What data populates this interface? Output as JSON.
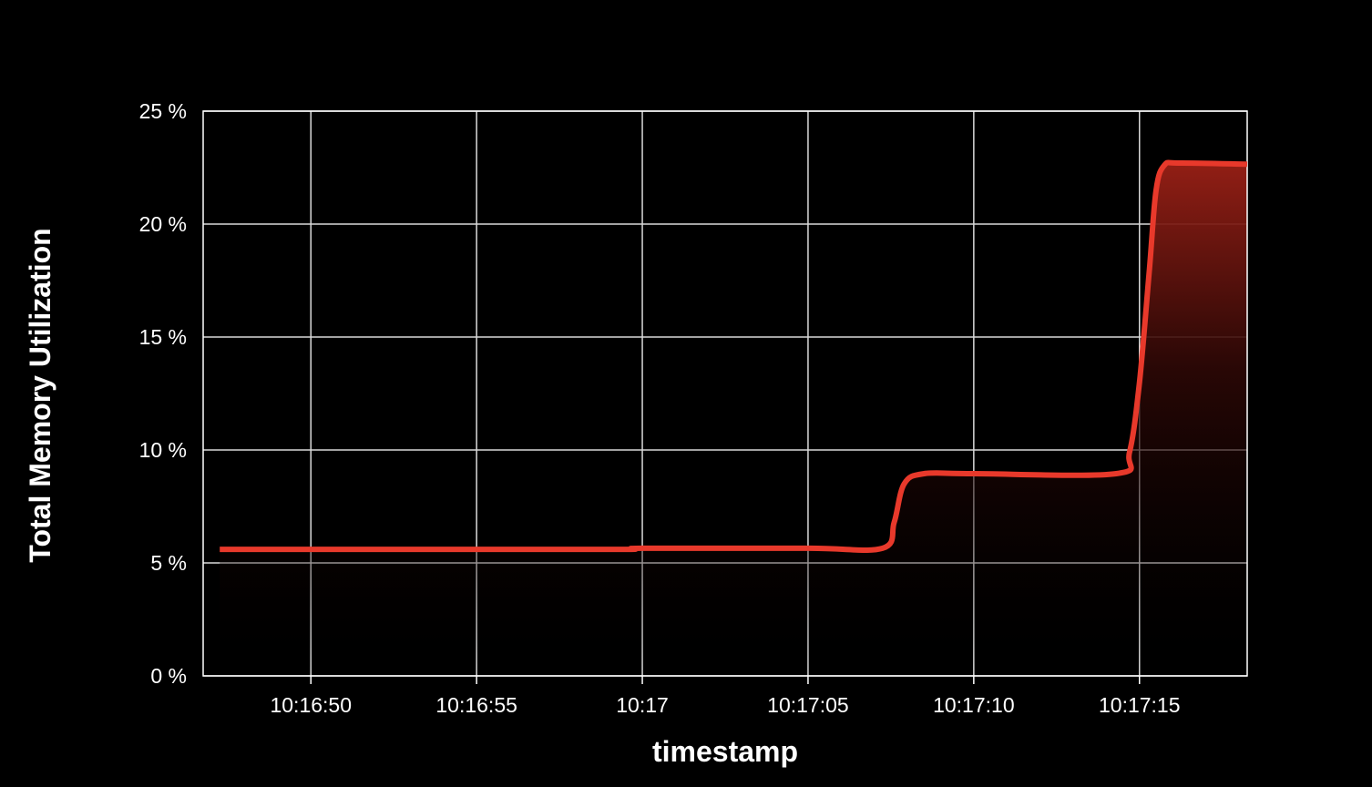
{
  "chart_data": {
    "type": "area",
    "title": "",
    "xlabel": "timestamp",
    "ylabel": "Total Memory Utilization",
    "x_ticks": [
      "10:16:50",
      "10:16:55",
      "10:17",
      "10:17:05",
      "10:17:10",
      "10:17:15"
    ],
    "y_ticks": [
      "0 %",
      "5 %",
      "10 %",
      "15 %",
      "20 %",
      "25 %"
    ],
    "ylim": [
      0,
      25
    ],
    "xlim": [
      "10:16:46.75",
      "10:17:18.25"
    ],
    "grid": true,
    "series": [
      {
        "color": "#e8392b",
        "x": [
          "10:16:47.25",
          "10:16:50",
          "10:16:55",
          "10:16:59.5",
          "10:17:00",
          "10:17:05",
          "10:17:07.25",
          "10:17:07.6",
          "10:17:07.9",
          "10:17:08.5",
          "10:17:10",
          "10:17:14.3",
          "10:17:14.7",
          "10:17:15",
          "10:17:15.3",
          "10:17:15.5",
          "10:17:15.75",
          "10:17:16.2",
          "10:17:18.25"
        ],
        "values": [
          5.6,
          5.6,
          5.6,
          5.6,
          5.65,
          5.65,
          5.65,
          6.8,
          8.5,
          8.95,
          8.95,
          8.95,
          9.9,
          13.0,
          18.0,
          21.5,
          22.6,
          22.7,
          22.65
        ]
      }
    ]
  }
}
